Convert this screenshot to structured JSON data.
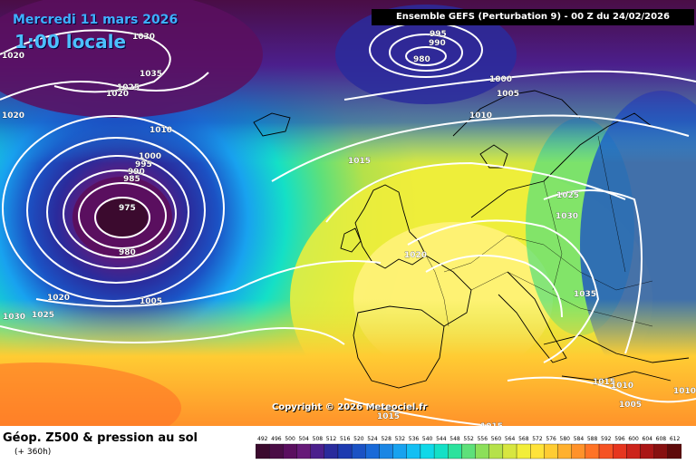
{
  "header": {
    "date": "Mercredi 11 mars 2026",
    "time": "1:00 locale",
    "run": "Ensemble GEFS  (Perturbation 9)  -  00 Z du 24/02/2026"
  },
  "copyright": "Copyright © 2026 Meteociel.fr",
  "footer": {
    "title": "Géop. Z500 & pression au sol",
    "lead": "(+ 360h)"
  },
  "legend": {
    "values": [
      "492",
      "496",
      "500",
      "504",
      "508",
      "512",
      "516",
      "520",
      "524",
      "528",
      "532",
      "536",
      "540",
      "544",
      "548",
      "552",
      "556",
      "560",
      "564",
      "568",
      "572",
      "576",
      "580",
      "584",
      "588",
      "592",
      "596",
      "600",
      "604",
      "608",
      "612"
    ],
    "colors": [
      "#3b0a2e",
      "#4a0d45",
      "#5a0f5f",
      "#661a78",
      "#4b1f8c",
      "#2a2b9c",
      "#1d3ab0",
      "#1b52c4",
      "#1a6ad8",
      "#1b86e4",
      "#18a2ef",
      "#14bff3",
      "#10d8e8",
      "#14e0c6",
      "#2ce29d",
      "#5ee07a",
      "#8cdf5a",
      "#b5e14a",
      "#d7e640",
      "#f2ee3a",
      "#ffe33a",
      "#ffcc33",
      "#ffb02e",
      "#ff922a",
      "#ff7326",
      "#f55223",
      "#e6361f",
      "#cc241b",
      "#aa1616",
      "#871010",
      "#5e0a0a"
    ]
  },
  "isobars": [
    {
      "label": "1030",
      "pos": "a"
    },
    {
      "label": "1020",
      "pos": "b"
    },
    {
      "label": "1035",
      "pos": "c"
    },
    {
      "label": "1025",
      "pos": "d"
    },
    {
      "label": "1020",
      "pos": "e"
    },
    {
      "label": "995",
      "pos": "f"
    },
    {
      "label": "990",
      "pos": "g"
    },
    {
      "label": "980",
      "pos": "h"
    },
    {
      "label": "1000",
      "pos": "i"
    },
    {
      "label": "1005",
      "pos": "j"
    },
    {
      "label": "1010",
      "pos": "k"
    },
    {
      "label": "1010",
      "pos": "l"
    },
    {
      "label": "1015",
      "pos": "m"
    },
    {
      "label": "1000",
      "pos": "n"
    },
    {
      "label": "995",
      "pos": "o"
    },
    {
      "label": "990",
      "pos": "p"
    },
    {
      "label": "985",
      "pos": "q"
    },
    {
      "label": "975",
      "pos": "r"
    },
    {
      "label": "980",
      "pos": "s"
    },
    {
      "label": "1020",
      "pos": "t"
    },
    {
      "label": "1005",
      "pos": "u"
    },
    {
      "label": "1030",
      "pos": "v"
    },
    {
      "label": "1025",
      "pos": "w"
    },
    {
      "label": "1020",
      "pos": "x"
    },
    {
      "label": "1025",
      "pos": "y"
    },
    {
      "label": "1030",
      "pos": "z"
    },
    {
      "label": "1035",
      "pos": "aa"
    },
    {
      "label": "1015",
      "pos": "bb"
    },
    {
      "label": "1010",
      "pos": "cc"
    },
    {
      "label": "1005",
      "pos": "dd"
    },
    {
      "label": "1015",
      "pos": "ee"
    },
    {
      "label": "1015",
      "pos": "ff"
    },
    {
      "label": "1010",
      "pos": "gg"
    },
    {
      "label": "1020",
      "pos": "hh"
    }
  ]
}
